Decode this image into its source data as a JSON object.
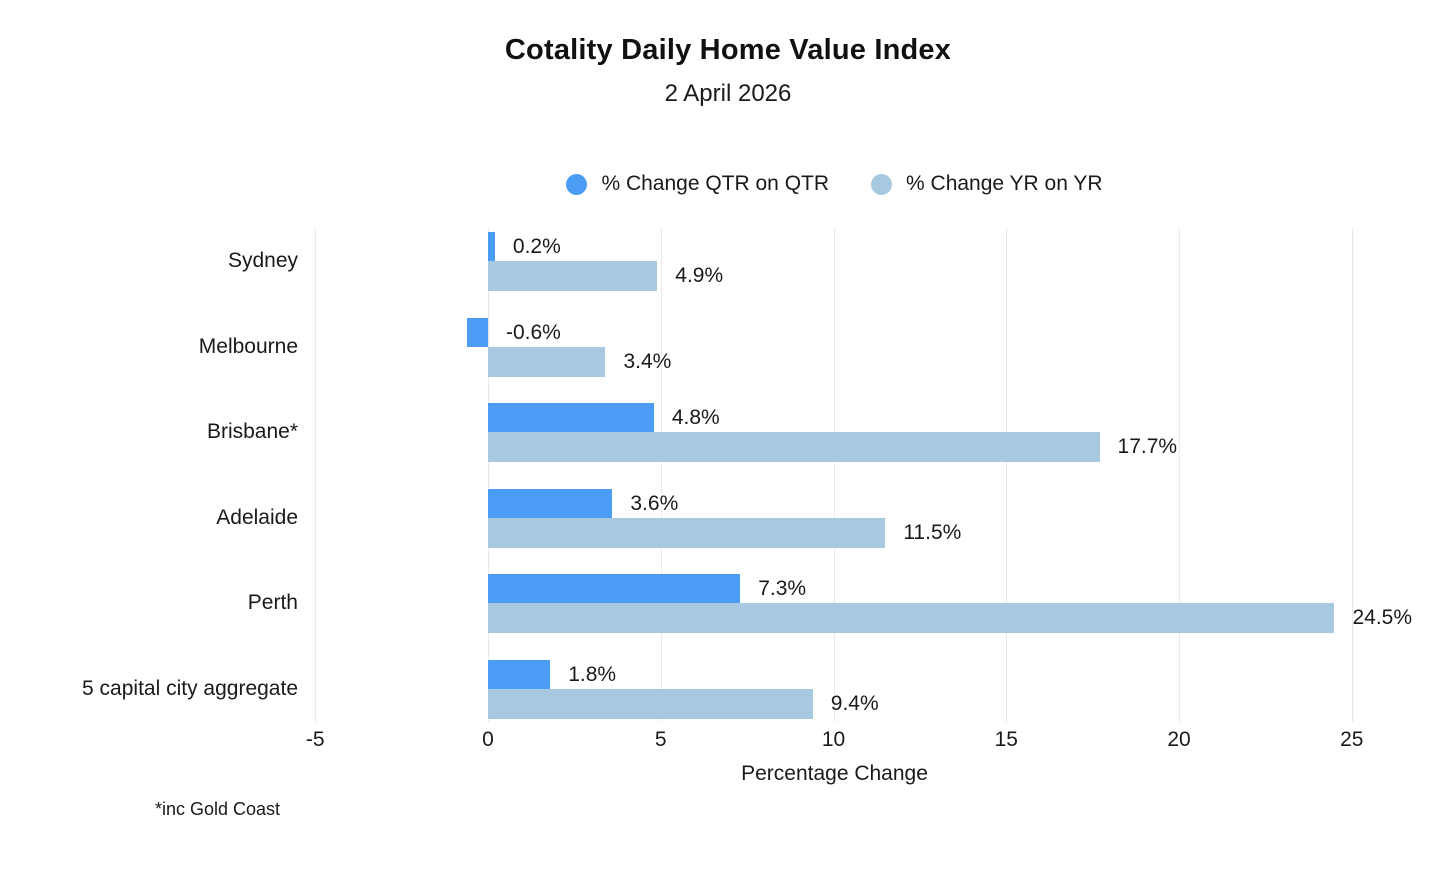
{
  "title": "Cotality Daily Home Value Index",
  "subtitle": "2 April 2026",
  "footnote": "*inc Gold Coast",
  "colors": {
    "qtr_bar": "#4A9CF4",
    "yr_bar": "#A7C9E0",
    "gridline": "#e9e9e9",
    "text": "#1a1a1a"
  },
  "chart_data": {
    "type": "bar",
    "orientation": "horizontal",
    "title": "Cotality Daily Home Value Index",
    "subtitle": "2 April 2026",
    "categories": [
      "Sydney",
      "Melbourne",
      "Brisbane*",
      "Adelaide",
      "Perth",
      "5 capital city aggregate"
    ],
    "series": [
      {
        "name": "% Change QTR on QTR",
        "color": "#4A9CF4",
        "values": [
          0.2,
          -0.6,
          4.8,
          3.6,
          7.3,
          1.8
        ],
        "labels": [
          "0.2%",
          "-0.6%",
          "4.8%",
          "3.6%",
          "7.3%",
          "1.8%"
        ]
      },
      {
        "name": "% Change YR on YR",
        "color": "#A7C9E0",
        "values": [
          4.9,
          3.4,
          17.7,
          11.5,
          24.5,
          9.4
        ],
        "labels": [
          "4.9%",
          "3.4%",
          "17.7%",
          "11.5%",
          "24.5%",
          "9.4%"
        ]
      }
    ],
    "xlabel": "Percentage Change",
    "xlim": [
      -5,
      25
    ],
    "xticks": [
      -5,
      0,
      5,
      10,
      15,
      20,
      25
    ],
    "grid": true,
    "legend_position": "top",
    "footnote": "*inc Gold Coast"
  }
}
